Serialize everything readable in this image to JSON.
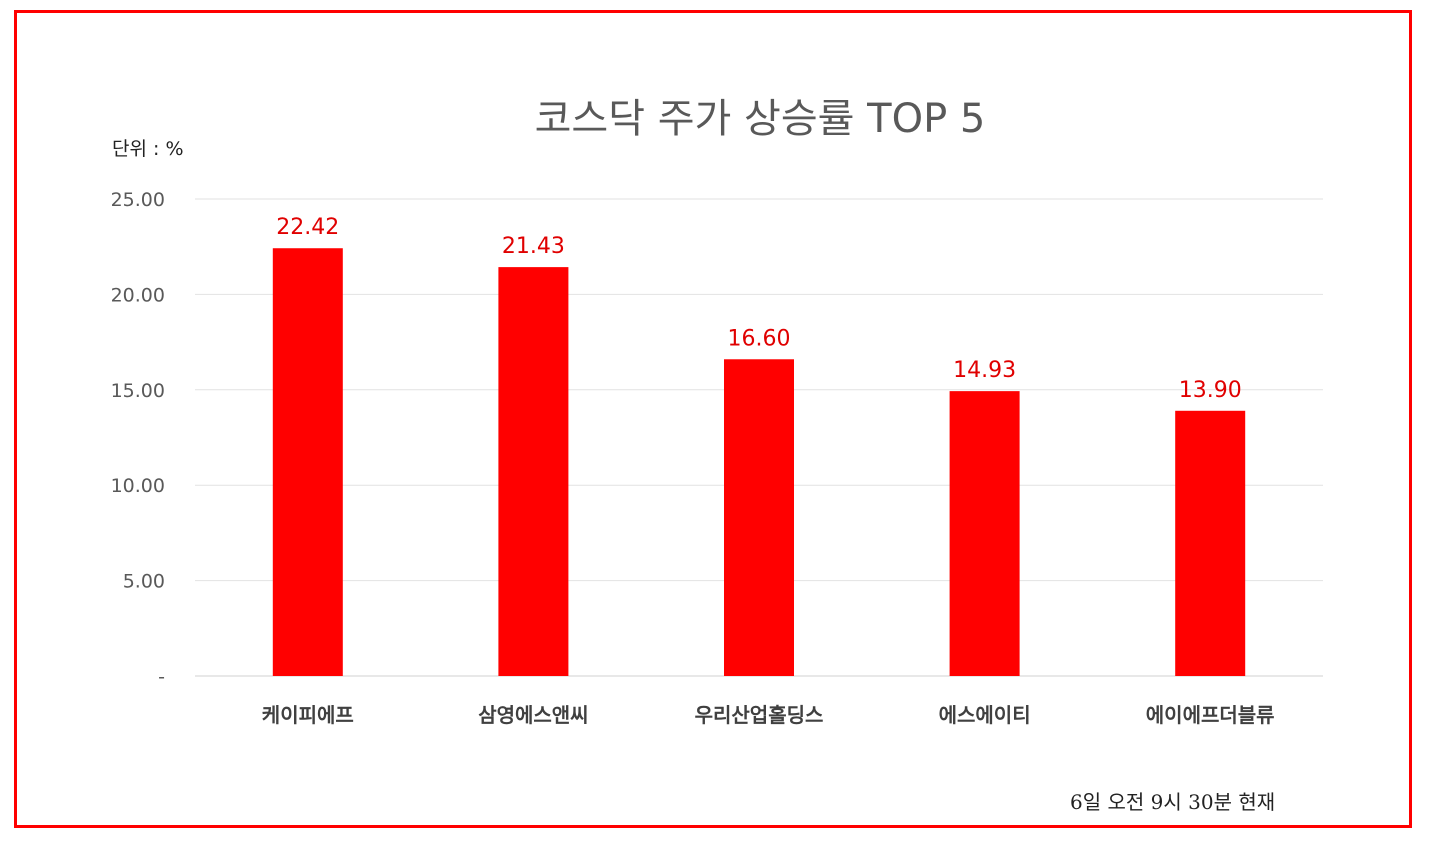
{
  "chart_data": {
    "type": "bar",
    "title": "코스닥 주가 상승률 TOP 5",
    "unit_label": "단위 : %",
    "note": "6일  오전 9시 30분 현재",
    "categories": [
      "케이피에프",
      "삼영에스앤씨",
      "우리산업홀딩스",
      "에스에이티",
      "에이에프더블류"
    ],
    "values": [
      22.42,
      21.43,
      16.6,
      14.93,
      13.9
    ],
    "value_labels": [
      "22.42",
      "21.43",
      "16.60",
      "14.93",
      "13.90"
    ],
    "yticks": [
      {
        "value": 0,
        "label": "-"
      },
      {
        "value": 5,
        "label": "5.00"
      },
      {
        "value": 10,
        "label": "10.00"
      },
      {
        "value": 15,
        "label": "15.00"
      },
      {
        "value": 20,
        "label": "20.00"
      },
      {
        "value": 25,
        "label": "25.00"
      }
    ],
    "ylim": [
      0,
      25
    ],
    "grid": true,
    "legend": "none",
    "bar_color": "#ff0000",
    "label_color": "#e00000",
    "frame_color": "#ff0000"
  }
}
